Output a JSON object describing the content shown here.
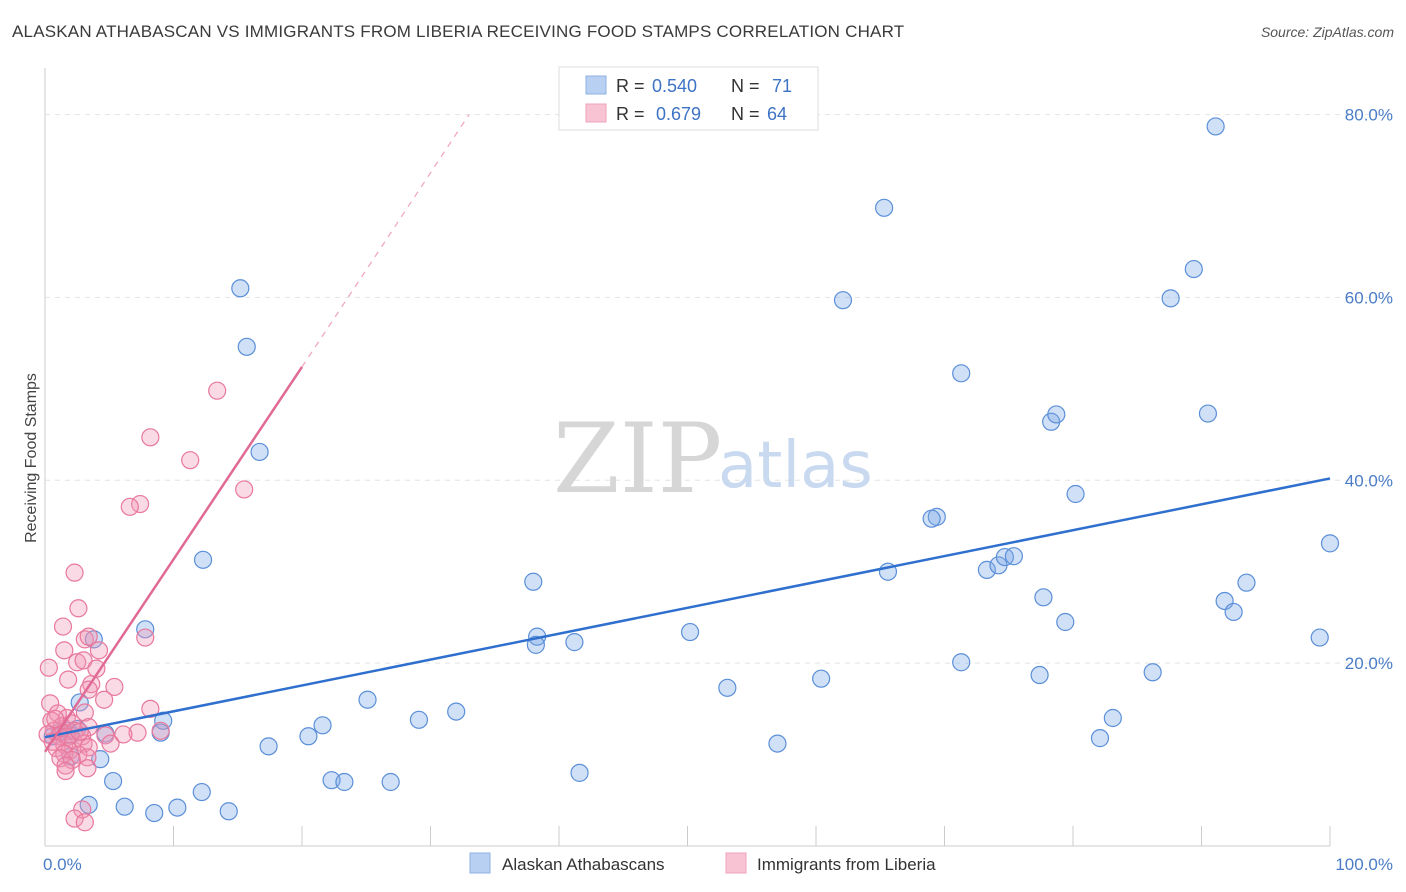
{
  "title": "ALASKAN ATHABASCAN VS IMMIGRANTS FROM LIBERIA RECEIVING FOOD STAMPS CORRELATION CHART",
  "source": "Source: ZipAtlas.com",
  "watermark": {
    "zip": "ZIP",
    "atlas": "atlas"
  },
  "colors": {
    "blue": "#5b8fd8",
    "blue_fill": "rgba(120,165,230,0.35)",
    "blue_line": "#2f6fce",
    "pink": "#e8789c",
    "pink_fill": "rgba(240,150,180,0.35)",
    "pink_line": "#e06a95"
  },
  "legend": {
    "r_label": "R =",
    "n_label": "N =",
    "series1": {
      "r": "0.540",
      "n": "71"
    },
    "series2": {
      "r": "0.679",
      "n": "64"
    }
  },
  "chart_data": {
    "type": "scatter",
    "title": "ALASKAN ATHABASCAN VS IMMIGRANTS FROM LIBERIA RECEIVING FOOD STAMPS CORRELATION CHART",
    "xlabel": "",
    "ylabel": "Receiving Food Stamps",
    "xlim": [
      0,
      100
    ],
    "ylim": [
      0,
      84
    ],
    "x_tick_labels": [
      "0.0%",
      "100.0%"
    ],
    "y_ticks": [
      20,
      40,
      60,
      80
    ],
    "y_tick_labels": [
      "20.0%",
      "40.0%",
      "60.0%",
      "80.0%"
    ],
    "series": [
      {
        "name": "Alaskan Athabascans",
        "trend": {
          "x": [
            0,
            100
          ],
          "y": [
            11.9,
            40.2
          ]
        },
        "points": [
          [
            15.2,
            61.0
          ],
          [
            15.7,
            54.6
          ],
          [
            16.7,
            43.1
          ],
          [
            12.3,
            31.3
          ],
          [
            7.8,
            23.7
          ],
          [
            3.8,
            22.6
          ],
          [
            2.7,
            15.7
          ],
          [
            2.5,
            12.8
          ],
          [
            4.7,
            12.3
          ],
          [
            4.3,
            9.5
          ],
          [
            9.0,
            12.4
          ],
          [
            9.2,
            13.7
          ],
          [
            1.8,
            12.6
          ],
          [
            2.0,
            9.8
          ],
          [
            5.3,
            7.1
          ],
          [
            3.4,
            4.5
          ],
          [
            6.2,
            4.3
          ],
          [
            8.5,
            3.6
          ],
          [
            10.3,
            4.2
          ],
          [
            12.2,
            5.9
          ],
          [
            14.3,
            3.8
          ],
          [
            17.4,
            10.9
          ],
          [
            20.5,
            12.0
          ],
          [
            21.6,
            13.2
          ],
          [
            22.3,
            7.2
          ],
          [
            23.3,
            7.0
          ],
          [
            25.1,
            16.0
          ],
          [
            26.9,
            7.0
          ],
          [
            29.1,
            13.8
          ],
          [
            32.0,
            14.7
          ],
          [
            38.3,
            22.9
          ],
          [
            38.2,
            22.0
          ],
          [
            38.0,
            28.9
          ],
          [
            41.2,
            22.3
          ],
          [
            41.6,
            8.0
          ],
          [
            50.2,
            23.4
          ],
          [
            53.1,
            17.3
          ],
          [
            57.0,
            11.2
          ],
          [
            60.4,
            18.3
          ],
          [
            62.1,
            59.7
          ],
          [
            65.3,
            69.8
          ],
          [
            65.6,
            30.0
          ],
          [
            69.4,
            36.0
          ],
          [
            69.0,
            35.8
          ],
          [
            71.3,
            51.7
          ],
          [
            71.3,
            20.1
          ],
          [
            73.3,
            30.2
          ],
          [
            74.2,
            30.7
          ],
          [
            74.7,
            31.6
          ],
          [
            75.4,
            31.7
          ],
          [
            77.4,
            18.7
          ],
          [
            77.7,
            27.2
          ],
          [
            78.3,
            46.4
          ],
          [
            78.7,
            47.2
          ],
          [
            79.4,
            24.5
          ],
          [
            80.2,
            38.5
          ],
          [
            82.1,
            11.8
          ],
          [
            83.1,
            14.0
          ],
          [
            86.2,
            19.0
          ],
          [
            87.6,
            59.9
          ],
          [
            89.4,
            63.1
          ],
          [
            90.5,
            47.3
          ],
          [
            91.1,
            78.7
          ],
          [
            91.8,
            26.8
          ],
          [
            92.5,
            25.6
          ],
          [
            93.5,
            28.8
          ],
          [
            99.2,
            22.8
          ],
          [
            100.0,
            33.1
          ],
          [
            0.6,
            12.0
          ],
          [
            1.2,
            12.5
          ],
          [
            2.0,
            12.1
          ]
        ]
      },
      {
        "name": "Immigrants from Liberia",
        "trend": {
          "x": [
            0,
            20
          ],
          "y": [
            10.3,
            52.4
          ]
        },
        "trend_dashed": {
          "x": [
            20,
            33
          ],
          "y": [
            52.4,
            80.0
          ]
        },
        "points": [
          [
            13.4,
            49.8
          ],
          [
            8.2,
            44.7
          ],
          [
            11.3,
            42.2
          ],
          [
            15.5,
            39.0
          ],
          [
            7.4,
            37.4
          ],
          [
            6.6,
            37.1
          ],
          [
            2.3,
            29.9
          ],
          [
            2.6,
            26.0
          ],
          [
            1.4,
            24.0
          ],
          [
            3.1,
            22.6
          ],
          [
            3.4,
            22.9
          ],
          [
            7.8,
            22.8
          ],
          [
            1.5,
            21.4
          ],
          [
            4.2,
            21.4
          ],
          [
            2.5,
            20.1
          ],
          [
            3.0,
            20.3
          ],
          [
            0.3,
            19.5
          ],
          [
            4.0,
            19.4
          ],
          [
            1.8,
            18.2
          ],
          [
            3.6,
            17.7
          ],
          [
            5.4,
            17.4
          ],
          [
            3.4,
            17.1
          ],
          [
            0.4,
            15.6
          ],
          [
            4.6,
            16.0
          ],
          [
            1.0,
            14.5
          ],
          [
            3.1,
            14.6
          ],
          [
            1.7,
            14.0
          ],
          [
            8.2,
            15.0
          ],
          [
            0.5,
            13.7
          ],
          [
            1.3,
            13.1
          ],
          [
            2.1,
            13.4
          ],
          [
            3.4,
            13.0
          ],
          [
            0.7,
            12.6
          ],
          [
            1.4,
            12.4
          ],
          [
            2.3,
            12.6
          ],
          [
            4.7,
            12.1
          ],
          [
            7.2,
            12.4
          ],
          [
            9.0,
            12.6
          ],
          [
            0.2,
            12.2
          ],
          [
            1.1,
            12.0
          ],
          [
            1.7,
            11.9
          ],
          [
            2.9,
            12.0
          ],
          [
            6.1,
            12.2
          ],
          [
            0.6,
            11.4
          ],
          [
            1.5,
            11.1
          ],
          [
            2.2,
            11.5
          ],
          [
            3.0,
            11.2
          ],
          [
            5.1,
            11.2
          ],
          [
            0.9,
            10.7
          ],
          [
            1.9,
            10.4
          ],
          [
            3.4,
            10.8
          ],
          [
            1.5,
            10.1
          ],
          [
            2.6,
            10.0
          ],
          [
            1.2,
            9.6
          ],
          [
            2.1,
            9.4
          ],
          [
            3.3,
            9.7
          ],
          [
            1.6,
            8.8
          ],
          [
            3.3,
            8.5
          ],
          [
            1.6,
            8.2
          ],
          [
            2.9,
            4.0
          ],
          [
            2.3,
            3.0
          ],
          [
            3.1,
            2.6
          ],
          [
            0.8,
            13.9
          ],
          [
            2.7,
            12.5
          ]
        ]
      }
    ]
  },
  "bottom_legend": [
    {
      "label": "Alaskan Athabascans"
    },
    {
      "label": "Immigrants from Liberia"
    }
  ]
}
